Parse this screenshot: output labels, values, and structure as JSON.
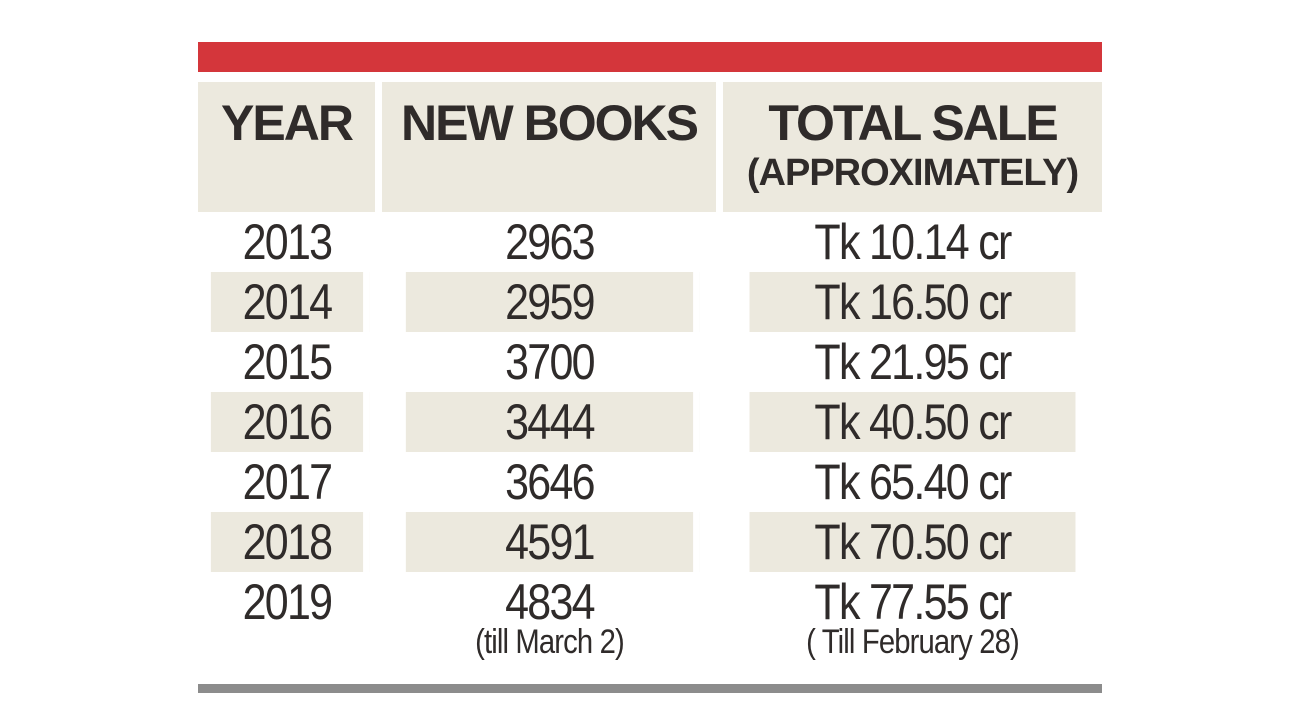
{
  "colors": {
    "accent_bar": "#d4363b",
    "bottom_rule": "#8c8c8c",
    "row_shade": "#ece9de"
  },
  "chart_data": {
    "type": "table",
    "columns": [
      "YEAR",
      "NEW BOOKS",
      "TOTAL SALE"
    ],
    "column_sub": [
      "",
      "",
      "(APPROXIMATELY)"
    ],
    "rows": [
      {
        "year": "2013",
        "new_books": "2963",
        "total_sale": "Tk 10.14 cr"
      },
      {
        "year": "2014",
        "new_books": "2959",
        "total_sale": "Tk 16.50 cr"
      },
      {
        "year": "2015",
        "new_books": "3700",
        "total_sale": "Tk 21.95 cr"
      },
      {
        "year": "2016",
        "new_books": "3444",
        "total_sale": "Tk 40.50 cr"
      },
      {
        "year": "2017",
        "new_books": "3646",
        "total_sale": "Tk 65.40 cr"
      },
      {
        "year": "2018",
        "new_books": "4591",
        "total_sale": "Tk 70.50 cr"
      },
      {
        "year": "2019",
        "new_books": "4834",
        "total_sale": "Tk 77.55 cr",
        "new_books_note": "(till March 2)",
        "total_sale_note": "( Till February 28)"
      }
    ]
  }
}
